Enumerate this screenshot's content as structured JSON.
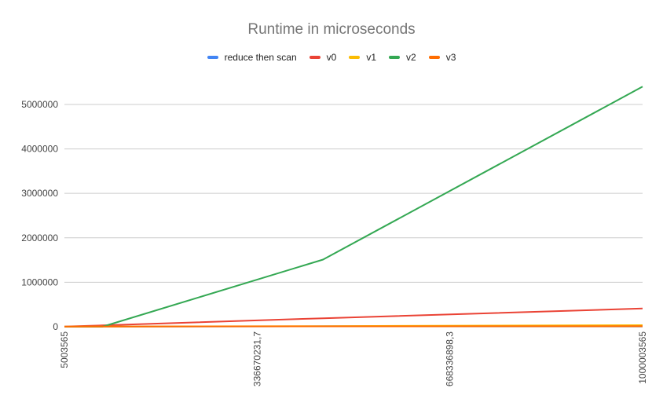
{
  "chart_data": {
    "type": "line",
    "title": "Runtime in microseconds",
    "xlabel": "",
    "ylabel": "",
    "x": [
      5003565,
      70000000,
      450000000,
      1000003565
    ],
    "x_ticks": [
      "5003565",
      "336670231,7",
      "668336898,3",
      "1000003565"
    ],
    "y_ticks": [
      "0",
      "1000000",
      "2000000",
      "3000000",
      "4000000",
      "5000000"
    ],
    "xlim": [
      5003565,
      1000003565
    ],
    "ylim": [
      0,
      5600000
    ],
    "grid": true,
    "legend_position": "top",
    "series": [
      {
        "name": "reduce then scan",
        "color": "#4285f4",
        "values": [
          1000,
          4000,
          10000,
          20000
        ]
      },
      {
        "name": "v0",
        "color": "#ea4335",
        "values": [
          5000,
          30000,
          190000,
          410000
        ]
      },
      {
        "name": "v1",
        "color": "#fbbc04",
        "values": [
          1000,
          5000,
          15000,
          35000
        ]
      },
      {
        "name": "v2",
        "color": "#34a853",
        "values": [
          0,
          0,
          1510000,
          5400000
        ]
      },
      {
        "name": "v3",
        "color": "#ff6d01",
        "values": [
          1000,
          3000,
          8000,
          12000
        ]
      }
    ]
  }
}
